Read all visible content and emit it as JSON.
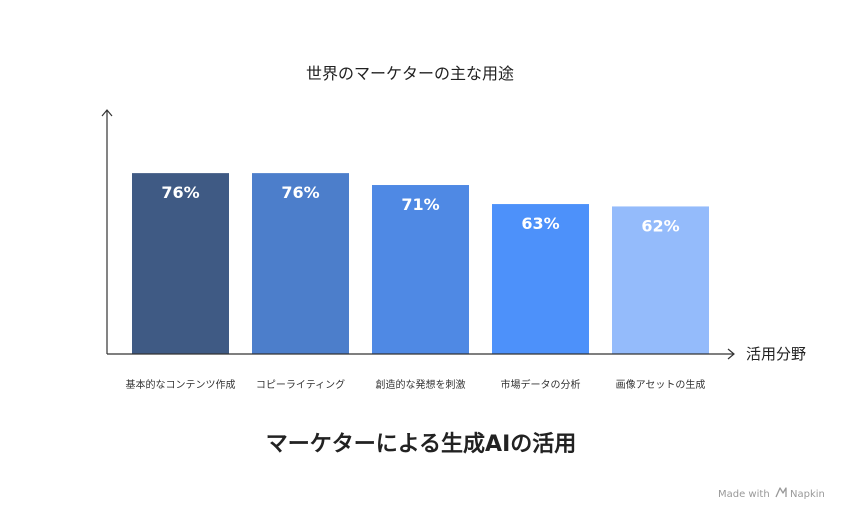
{
  "chart_data": {
    "type": "bar",
    "title": "世界のマーケターの主な用途",
    "xlabel": "活用分野",
    "ylabel": "",
    "categories": [
      "基本的なコンテンツ作成",
      "コピーライティング",
      "創造的な発想を刺激",
      "市場データの分析",
      "画像アセットの生成"
    ],
    "values": [
      76,
      76,
      71,
      63,
      62
    ],
    "value_labels": [
      "76%",
      "76%",
      "71%",
      "63%",
      "62%"
    ],
    "ylim": [
      0,
      100
    ],
    "bar_colors": [
      "#3f5a84",
      "#4c7ecb",
      "#4f89e4",
      "#4d91fa",
      "#94bbfb"
    ],
    "grid": false,
    "legend": "none"
  },
  "footer": {
    "title": "マーケターによる生成AIの活用",
    "credit": "Made with",
    "brand": "Napkin"
  }
}
